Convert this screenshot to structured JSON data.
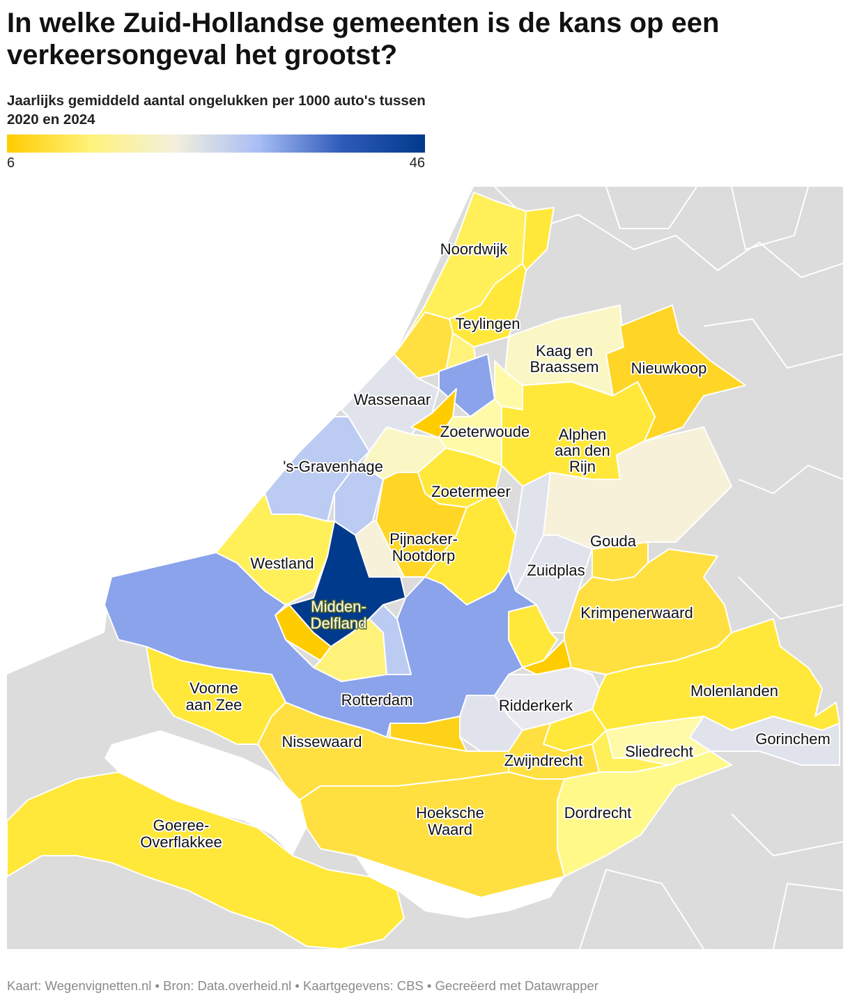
{
  "title": "In welke Zuid-Hollandse gemeenten is de kans op een verkeersongeval het grootst?",
  "subtitle": "Jaarlijks gemiddeld aantal ongelukken per 1000 auto's tussen 2020 en 2024",
  "legend": {
    "min": "6",
    "max": "46",
    "gradient": [
      "#ffcc00",
      "#fff27a",
      "#f3f0dc",
      "#a9bef5",
      "#2f5bb9",
      "#003a8c"
    ]
  },
  "colors": {
    "background_land": "#dcdcdc",
    "water": "#ffffff",
    "borders": "#ffffff",
    "deep_blue": "#0b3d91",
    "mid_blue": "#8aa3ea",
    "light_blue": "#bccbf2",
    "grey_blue": "#e1e3ec",
    "cream": "#f6f1d8",
    "pale_yellow": "#fffaa8",
    "yellow": "#ffe83a",
    "gold": "#ffd21a"
  },
  "map": {
    "labels": {
      "noordwijk": "Noordwijk",
      "teylingen": "Teylingen",
      "kaag_line1": "Kaag en",
      "kaag_line2": "Braassem",
      "nieuwkoop": "Nieuwkoop",
      "wassenaar": "Wassenaar",
      "zoeterwoude": "Zoeterwoude",
      "alphen_line1": "Alphen",
      "alphen_line2": "aan den",
      "alphen_line3": "Rijn",
      "gravenhage": "'s-Gravenhage",
      "zoetermeer": "Zoetermeer",
      "pijnacker_line1": "Pijnacker-",
      "pijnacker_line2": "Nootdorp",
      "gouda": "Gouda",
      "westland": "Westland",
      "zuidplas": "Zuidplas",
      "midden_line1": "Midden-",
      "midden_line2": "Delfland",
      "krimpenerwaard": "Krimpenerwaard",
      "voorne_line1": "Voorne",
      "voorne_line2": "aan Zee",
      "rotterdam": "Rotterdam",
      "ridderkerk": "Ridderkerk",
      "molenlanden": "Molenlanden",
      "nissewaard": "Nissewaard",
      "gorinchem": "Gorinchem",
      "sliedrecht": "Sliedrecht",
      "zwijndrecht": "Zwijndrecht",
      "hoeksche_line1": "Hoeksche",
      "hoeksche_line2": "Waard",
      "dordrecht": "Dordrecht",
      "goeree_line1": "Goeree-",
      "goeree_line2": "Overflakkee"
    }
  },
  "footer": "Kaart: Wegenvignetten.nl • Bron: Data.overheid.nl • Kaartgegevens: CBS • Gecreëerd met Datawrapper"
}
